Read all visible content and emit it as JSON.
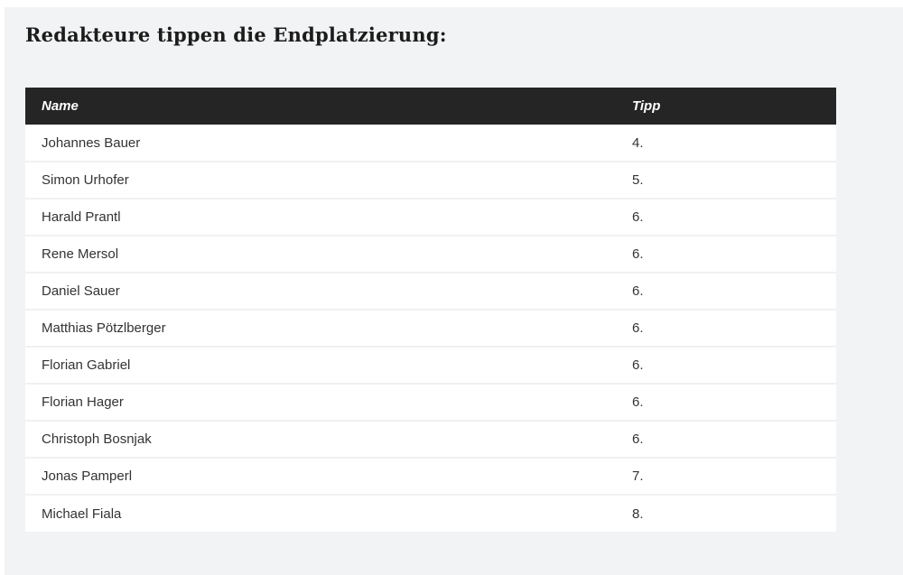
{
  "page": {
    "heading": "Redakteure tippen die Endplatzierung:"
  },
  "table": {
    "columns": [
      {
        "key": "name",
        "label": "Name"
      },
      {
        "key": "tipp",
        "label": "Tipp"
      }
    ],
    "rows": [
      {
        "name": "Johannes Bauer",
        "tipp": "4."
      },
      {
        "name": "Simon Urhofer",
        "tipp": "5."
      },
      {
        "name": "Harald Prantl",
        "tipp": "6."
      },
      {
        "name": "Rene Mersol",
        "tipp": "6."
      },
      {
        "name": "Daniel Sauer",
        "tipp": "6."
      },
      {
        "name": "Matthias Pötzlberger",
        "tipp": "6."
      },
      {
        "name": "Florian Gabriel",
        "tipp": "6."
      },
      {
        "name": "Florian Hager",
        "tipp": "6."
      },
      {
        "name": "Christoph Bosnjak",
        "tipp": "6."
      },
      {
        "name": "Jonas Pamperl",
        "tipp": "7."
      },
      {
        "name": "Michael Fiala",
        "tipp": "8."
      }
    ]
  },
  "colors": {
    "page_background": "#f2f3f4",
    "header_background": "#252525",
    "header_text": "#ffffff",
    "row_background": "#ffffff",
    "row_text": "#333333",
    "row_separator": "#f1f1f2",
    "heading_text": "#1c1c1c"
  }
}
